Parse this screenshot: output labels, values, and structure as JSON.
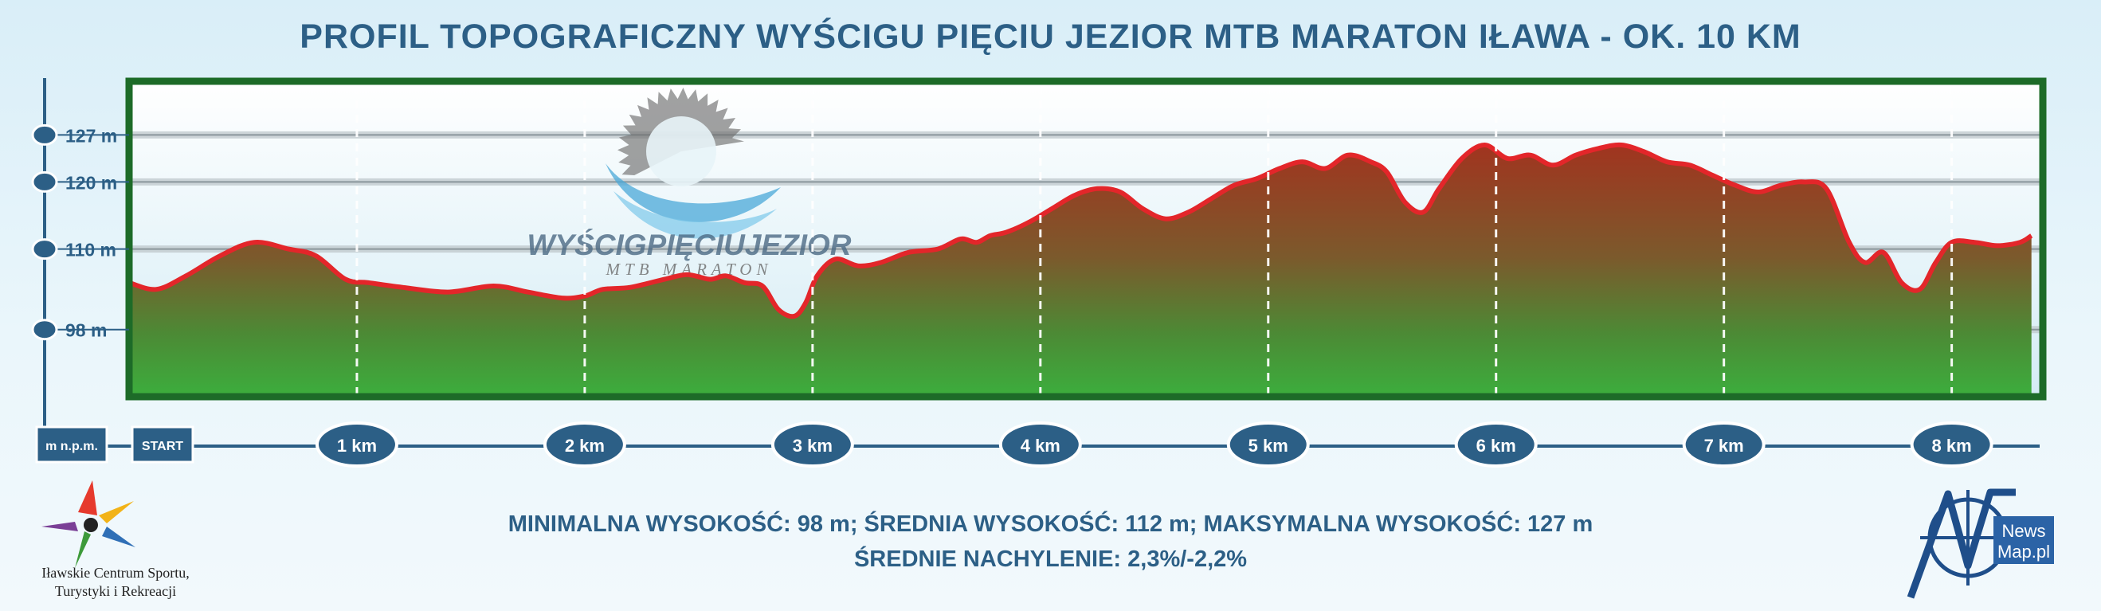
{
  "title": "PROFIL TOPOGRAFICZNY WYŚCIGU PIĘCIU JEZIOR MTB MARATON IŁAWA - OK. 10 KM",
  "chart_data": {
    "type": "area",
    "xlabel": "",
    "ylabel": "m n.p.m.",
    "start_label": "START",
    "x_unit": "km",
    "xlim": [
      0,
      8.4
    ],
    "ylim": [
      88,
      135
    ],
    "grid": true,
    "y_ticks": [
      {
        "value": 98,
        "label": "98 m"
      },
      {
        "value": 110,
        "label": "110 m"
      },
      {
        "value": 120,
        "label": "120 m"
      },
      {
        "value": 127,
        "label": "127 m"
      }
    ],
    "x_ticks": [
      {
        "value": 1,
        "label": "1 km"
      },
      {
        "value": 2,
        "label": "2 km"
      },
      {
        "value": 3,
        "label": "3 km"
      },
      {
        "value": 4,
        "label": "4 km"
      },
      {
        "value": 5,
        "label": "5 km"
      },
      {
        "value": 6,
        "label": "6 km"
      },
      {
        "value": 7,
        "label": "7 km"
      },
      {
        "value": 8,
        "label": "8 km"
      }
    ],
    "series": [
      {
        "x": [
          0,
          0.12,
          0.25,
          0.4,
          0.55,
          0.7,
          0.82,
          0.95,
          1.05,
          1.2,
          1.4,
          1.6,
          1.75,
          1.9,
          2.0,
          2.08,
          2.2,
          2.35,
          2.45,
          2.55,
          2.62,
          2.7,
          2.78,
          2.85,
          2.92,
          2.97,
          3.02,
          3.1,
          3.2,
          3.3,
          3.42,
          3.55,
          3.65,
          3.72,
          3.78,
          3.85,
          3.95,
          4.05,
          4.15,
          4.25,
          4.35,
          4.45,
          4.55,
          4.65,
          4.75,
          4.85,
          4.95,
          5.05,
          5.15,
          5.25,
          5.35,
          5.45,
          5.52,
          5.6,
          5.68,
          5.75,
          5.85,
          5.95,
          6.05,
          6.15,
          6.25,
          6.35,
          6.45,
          6.55,
          6.65,
          6.75,
          6.85,
          6.95,
          7.05,
          7.15,
          7.25,
          7.35,
          7.45,
          7.55,
          7.62,
          7.7,
          7.78,
          7.86,
          7.93,
          8.0,
          8.1,
          8.2,
          8.3,
          8.35
        ],
        "y": [
          105,
          104,
          106,
          109,
          111,
          110,
          109,
          105.5,
          105,
          104.3,
          103.6,
          104.5,
          103.6,
          102.7,
          103,
          104,
          104.3,
          105.5,
          106.2,
          105.5,
          106,
          105,
          104.5,
          101,
          100,
          102,
          106,
          108.5,
          107.5,
          108,
          109.5,
          110,
          111.5,
          111,
          112,
          112.5,
          114,
          116,
          118,
          119,
          118.5,
          116,
          114.5,
          115.5,
          117.5,
          119.5,
          120.5,
          122,
          123,
          122,
          124,
          123,
          121.5,
          117,
          115.5,
          119,
          123.5,
          125.5,
          123.5,
          124,
          122.5,
          124,
          125,
          125.5,
          124.5,
          123,
          122.5,
          121,
          119.5,
          118.5,
          119.5,
          120,
          119,
          111,
          108,
          109.5,
          105,
          104,
          108,
          111,
          111,
          110.5,
          111,
          112
        ]
      }
    ]
  },
  "axis_unit_label": "m n.p.m.",
  "start_label": "START",
  "stats": {
    "line1": "MINIMALNA WYSOKOŚĆ: 98 m; ŚREDNIA WYSOKOŚĆ: 112 m; MAKSYMALNA WYSOKOŚĆ: 127 m",
    "line2": "ŚREDNIE NACHYLENIE: 2,3%/-2,2%"
  },
  "watermark": {
    "name": "WYŚCIGPIĘCIUJEZIOR",
    "sub": "MTB MARATON"
  },
  "logo_left": {
    "line1": "Iławskie Centrum Sportu,",
    "line2": "Turystyki i Rekreacji"
  },
  "logo_right": {
    "line1": "News",
    "line2": "Map.pl"
  },
  "colors": {
    "frame": "#1d6b28",
    "profile_line": "#e3262a",
    "fill_top": "#9b3a26",
    "fill_bottom": "#3cab3c",
    "axis": "#2c5f86",
    "km_badge": "#2c5f86"
  }
}
